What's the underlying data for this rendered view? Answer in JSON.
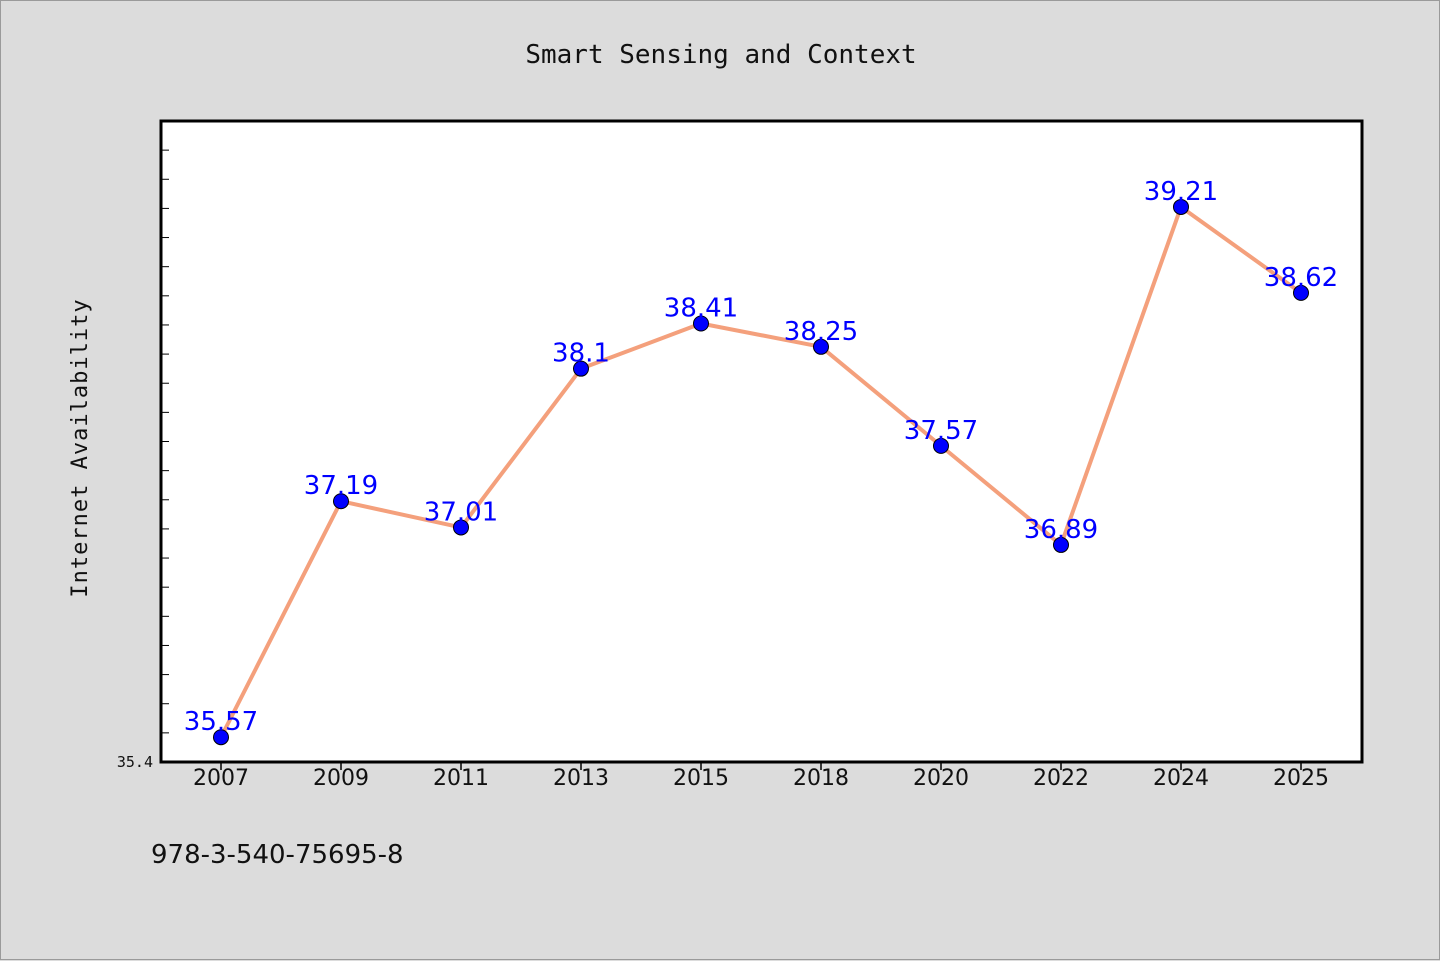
{
  "chart_data": {
    "type": "line",
    "title": "Smart Sensing and Context",
    "xlabel": "",
    "ylabel": "Internet Availability",
    "categories": [
      "2007",
      "2009",
      "2011",
      "2013",
      "2015",
      "2018",
      "2020",
      "2022",
      "2024",
      "2025"
    ],
    "series": [
      {
        "values": [
          35.57,
          37.19,
          37.01,
          38.1,
          38.41,
          38.25,
          37.57,
          36.89,
          39.21,
          38.62
        ]
      }
    ],
    "data_labels": [
      "35.57",
      "37.19",
      "37.01",
      "38.1",
      "38.41",
      "38.25",
      "37.57",
      "36.89",
      "39.21",
      "38.62"
    ],
    "ylim": [
      35.4,
      39.8
    ],
    "y_min_label": "35.4",
    "grid": false,
    "line_color": "#f4a07c",
    "marker_color": "#0000ff",
    "label_color": "#0000ff"
  },
  "footer": {
    "text": "978-3-540-75695-8"
  }
}
